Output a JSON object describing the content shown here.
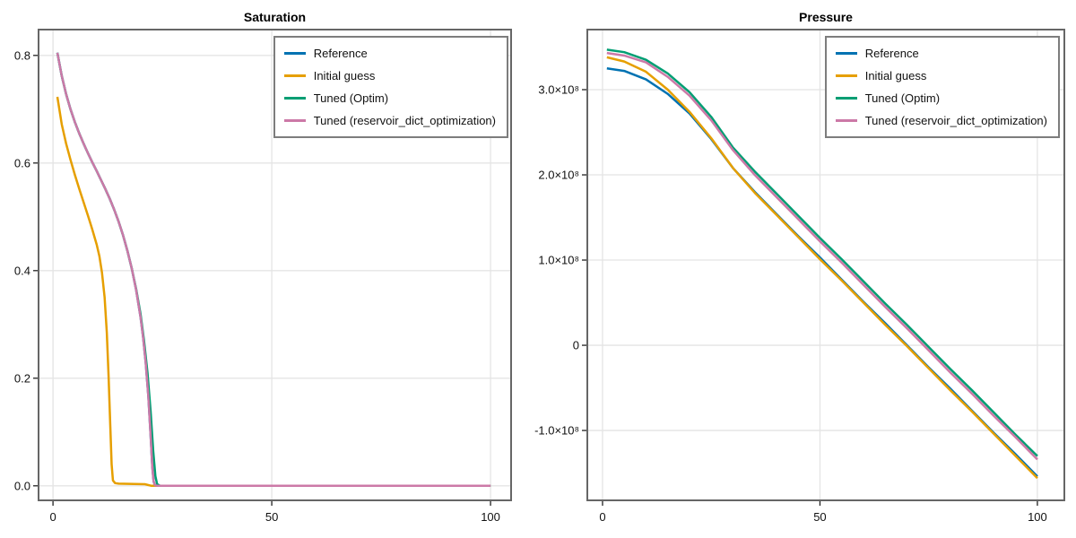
{
  "figure": {
    "background": "#ffffff"
  },
  "palette": {
    "reference": "#0072B2",
    "initial_guess": "#E69F00",
    "tuned_optim": "#009E73",
    "tuned_dict": "#CC79A7",
    "grid": "#e4e4e4",
    "spine": "#666666",
    "tick": "#222222",
    "text": "#111111",
    "legend_border": "#7d7d7d"
  },
  "chart_data": [
    {
      "type": "line",
      "title": "Saturation",
      "xlabel": "",
      "ylabel": "",
      "grid": true,
      "legend_position": "top-right",
      "xlim": [
        -3.3,
        104.7
      ],
      "ylim": [
        -0.027,
        0.848
      ],
      "xticks": [
        {
          "v": 0,
          "label": "0"
        },
        {
          "v": 50,
          "label": "50"
        },
        {
          "v": 100,
          "label": "100"
        }
      ],
      "yticks": [
        {
          "v": 0.0,
          "label": "0.0"
        },
        {
          "v": 0.2,
          "label": "0.2"
        },
        {
          "v": 0.4,
          "label": "0.4"
        },
        {
          "v": 0.6,
          "label": "0.6"
        },
        {
          "v": 0.8,
          "label": "0.8"
        }
      ],
      "legend": {
        "entries": [
          {
            "label": "Reference",
            "color": "reference"
          },
          {
            "label": "Initial guess",
            "color": "initial_guess"
          },
          {
            "label": "Tuned (Optim)",
            "color": "tuned_optim"
          },
          {
            "label": "Tuned (reservoir_dict_optimization)",
            "color": "tuned_dict"
          }
        ]
      },
      "series": [
        {
          "name": "Reference",
          "color": "reference",
          "points": [
            [
              1,
              0.805
            ],
            [
              2,
              0.762
            ],
            [
              3,
              0.728
            ],
            [
              4,
              0.7
            ],
            [
              5,
              0.676
            ],
            [
              6,
              0.655
            ],
            [
              7,
              0.636
            ],
            [
              8,
              0.618
            ],
            [
              9,
              0.601
            ],
            [
              10,
              0.585
            ],
            [
              11,
              0.568
            ],
            [
              12,
              0.551
            ],
            [
              13,
              0.533
            ],
            [
              14,
              0.513
            ],
            [
              15,
              0.491
            ],
            [
              16,
              0.466
            ],
            [
              17,
              0.437
            ],
            [
              18,
              0.404
            ],
            [
              19,
              0.364
            ],
            [
              20,
              0.314
            ],
            [
              20.6,
              0.276
            ],
            [
              21.2,
              0.228
            ],
            [
              21.8,
              0.165
            ],
            [
              22.3,
              0.095
            ],
            [
              22.7,
              0.035
            ],
            [
              23.0,
              0.008
            ],
            [
              23.3,
              0.001
            ],
            [
              24,
              0.0
            ],
            [
              100,
              0.0
            ]
          ]
        },
        {
          "name": "Initial guess",
          "color": "initial_guess",
          "points": [
            [
              1,
              0.723
            ],
            [
              2,
              0.672
            ],
            [
              3,
              0.636
            ],
            [
              4,
              0.606
            ],
            [
              5,
              0.578
            ],
            [
              6,
              0.552
            ],
            [
              7,
              0.527
            ],
            [
              8,
              0.502
            ],
            [
              9,
              0.476
            ],
            [
              10,
              0.448
            ],
            [
              10.6,
              0.427
            ],
            [
              11.2,
              0.396
            ],
            [
              11.8,
              0.35
            ],
            [
              12.3,
              0.285
            ],
            [
              12.7,
              0.205
            ],
            [
              13.1,
              0.11
            ],
            [
              13.4,
              0.04
            ],
            [
              13.7,
              0.01
            ],
            [
              14.2,
              0.005
            ],
            [
              15,
              0.004
            ],
            [
              21,
              0.003
            ],
            [
              22.5,
              0.0
            ],
            [
              100,
              0.0
            ]
          ]
        },
        {
          "name": "Tuned (Optim)",
          "color": "tuned_optim",
          "points": [
            [
              1,
              0.805
            ],
            [
              2,
              0.762
            ],
            [
              3,
              0.728
            ],
            [
              4,
              0.7
            ],
            [
              5,
              0.676
            ],
            [
              6,
              0.655
            ],
            [
              7,
              0.636
            ],
            [
              8,
              0.618
            ],
            [
              9,
              0.601
            ],
            [
              10,
              0.585
            ],
            [
              11,
              0.568
            ],
            [
              12,
              0.551
            ],
            [
              13,
              0.533
            ],
            [
              14,
              0.513
            ],
            [
              15,
              0.491
            ],
            [
              16,
              0.466
            ],
            [
              17,
              0.437
            ],
            [
              18,
              0.404
            ],
            [
              19,
              0.366
            ],
            [
              20,
              0.32
            ],
            [
              20.8,
              0.27
            ],
            [
              21.6,
              0.21
            ],
            [
              22.3,
              0.14
            ],
            [
              22.9,
              0.065
            ],
            [
              23.4,
              0.018
            ],
            [
              23.8,
              0.003
            ],
            [
              24.5,
              0.0
            ],
            [
              100,
              0.0
            ]
          ]
        },
        {
          "name": "Tuned (reservoir_dict_optimization)",
          "color": "tuned_dict",
          "points": [
            [
              1,
              0.805
            ],
            [
              2,
              0.762
            ],
            [
              3,
              0.728
            ],
            [
              4,
              0.7
            ],
            [
              5,
              0.676
            ],
            [
              6,
              0.655
            ],
            [
              7,
              0.636
            ],
            [
              8,
              0.618
            ],
            [
              9,
              0.601
            ],
            [
              10,
              0.585
            ],
            [
              11,
              0.568
            ],
            [
              12,
              0.551
            ],
            [
              13,
              0.533
            ],
            [
              14,
              0.513
            ],
            [
              15,
              0.491
            ],
            [
              16,
              0.466
            ],
            [
              17,
              0.437
            ],
            [
              18,
              0.404
            ],
            [
              19,
              0.364
            ],
            [
              20,
              0.314
            ],
            [
              20.6,
              0.276
            ],
            [
              21.2,
              0.228
            ],
            [
              21.8,
              0.165
            ],
            [
              22.3,
              0.095
            ],
            [
              22.7,
              0.035
            ],
            [
              23.0,
              0.008
            ],
            [
              23.3,
              0.001
            ],
            [
              24,
              0.0
            ],
            [
              100,
              0.0
            ]
          ]
        }
      ]
    },
    {
      "type": "line",
      "title": "Pressure",
      "xlabel": "",
      "ylabel": "",
      "grid": true,
      "legend_position": "top-right",
      "xlim": [
        -3.5,
        106.2
      ],
      "ylim": [
        -182000000.0,
        370500000.0
      ],
      "xticks": [
        {
          "v": 0,
          "label": "0"
        },
        {
          "v": 50,
          "label": "50"
        },
        {
          "v": 100,
          "label": "100"
        }
      ],
      "yticks": [
        {
          "v": -100000000.0,
          "label": "-1.0×10⁸"
        },
        {
          "v": 0,
          "label": "0"
        },
        {
          "v": 100000000.0,
          "label": "1.0×10⁸"
        },
        {
          "v": 200000000.0,
          "label": "2.0×10⁸"
        },
        {
          "v": 300000000.0,
          "label": "3.0×10⁸"
        }
      ],
      "legend": {
        "entries": [
          {
            "label": "Reference",
            "color": "reference"
          },
          {
            "label": "Initial guess",
            "color": "initial_guess"
          },
          {
            "label": "Tuned (Optim)",
            "color": "tuned_optim"
          },
          {
            "label": "Tuned (reservoir_dict_optimization)",
            "color": "tuned_dict"
          }
        ]
      },
      "series": [
        {
          "name": "Reference",
          "color": "reference",
          "points": [
            [
              1,
              325000000.0
            ],
            [
              5,
              322000000.0
            ],
            [
              10,
              312000000.0
            ],
            [
              15,
              295000000.0
            ],
            [
              20,
              272000000.0
            ],
            [
              25,
              242000000.0
            ],
            [
              30,
              208000000.0
            ],
            [
              35,
              180000000.0
            ],
            [
              40,
              154000000.0
            ],
            [
              45,
              128000000.0
            ],
            [
              50,
              103000000.0
            ],
            [
              55,
              77000000.0
            ],
            [
              60,
              51000000.0
            ],
            [
              65,
              26000000.0
            ],
            [
              70,
              0.0
            ],
            [
              75,
              -26000000.0
            ],
            [
              80,
              -51000000.0
            ],
            [
              85,
              -77000000.0
            ],
            [
              90,
              -103000000.0
            ],
            [
              95,
              -128000000.0
            ],
            [
              100,
              -154000000.0
            ]
          ]
        },
        {
          "name": "Initial guess",
          "color": "initial_guess",
          "points": [
            [
              1,
              338000000.0
            ],
            [
              5,
              333000000.0
            ],
            [
              10,
              321000000.0
            ],
            [
              15,
              300000000.0
            ],
            [
              20,
              274000000.0
            ],
            [
              25,
              243000000.0
            ],
            [
              30,
              208000000.0
            ],
            [
              35,
              179000000.0
            ],
            [
              40,
              153000000.0
            ],
            [
              45,
              127000000.0
            ],
            [
              50,
              101000000.0
            ],
            [
              55,
              76000000.0
            ],
            [
              60,
              50000000.0
            ],
            [
              65,
              24000000.0
            ],
            [
              70,
              -1000000.0
            ],
            [
              75,
              -27000000.0
            ],
            [
              80,
              -53000000.0
            ],
            [
              85,
              -78000000.0
            ],
            [
              90,
              -104000000.0
            ],
            [
              95,
              -130000000.0
            ],
            [
              100,
              -156000000.0
            ]
          ]
        },
        {
          "name": "Tuned (Optim)",
          "color": "tuned_optim",
          "points": [
            [
              1,
              347000000.0
            ],
            [
              5,
              344000000.0
            ],
            [
              10,
              335000000.0
            ],
            [
              15,
              319000000.0
            ],
            [
              20,
              297000000.0
            ],
            [
              25,
              268000000.0
            ],
            [
              30,
              232000000.0
            ],
            [
              35,
              204000000.0
            ],
            [
              40,
              178000000.0
            ],
            [
              45,
              152000000.0
            ],
            [
              50,
              126000000.0
            ],
            [
              55,
              101000000.0
            ],
            [
              60,
              75000000.0
            ],
            [
              65,
              49000000.0
            ],
            [
              70,
              24000000.0
            ],
            [
              75,
              -2000000.0
            ],
            [
              80,
              -28000000.0
            ],
            [
              85,
              -53000000.0
            ],
            [
              90,
              -79000000.0
            ],
            [
              95,
              -105000000.0
            ],
            [
              100,
              -130000000.0
            ]
          ]
        },
        {
          "name": "Tuned (reservoir_dict_optimization)",
          "color": "tuned_dict",
          "points": [
            [
              1,
              343000000.0
            ],
            [
              5,
              340000000.0
            ],
            [
              10,
              332000000.0
            ],
            [
              15,
              315000000.0
            ],
            [
              20,
              293000000.0
            ],
            [
              25,
              264000000.0
            ],
            [
              30,
              229000000.0
            ],
            [
              35,
              200000000.0
            ],
            [
              40,
              174000000.0
            ],
            [
              45,
              148000000.0
            ],
            [
              50,
              122000000.0
            ],
            [
              55,
              97000000.0
            ],
            [
              60,
              71000000.0
            ],
            [
              65,
              45000000.0
            ],
            [
              70,
              20000000.0
            ],
            [
              75,
              -6000000.0
            ],
            [
              80,
              -32000000.0
            ],
            [
              85,
              -57000000.0
            ],
            [
              90,
              -83000000.0
            ],
            [
              95,
              -108000000.0
            ],
            [
              100,
              -134000000.0
            ]
          ]
        }
      ]
    }
  ]
}
